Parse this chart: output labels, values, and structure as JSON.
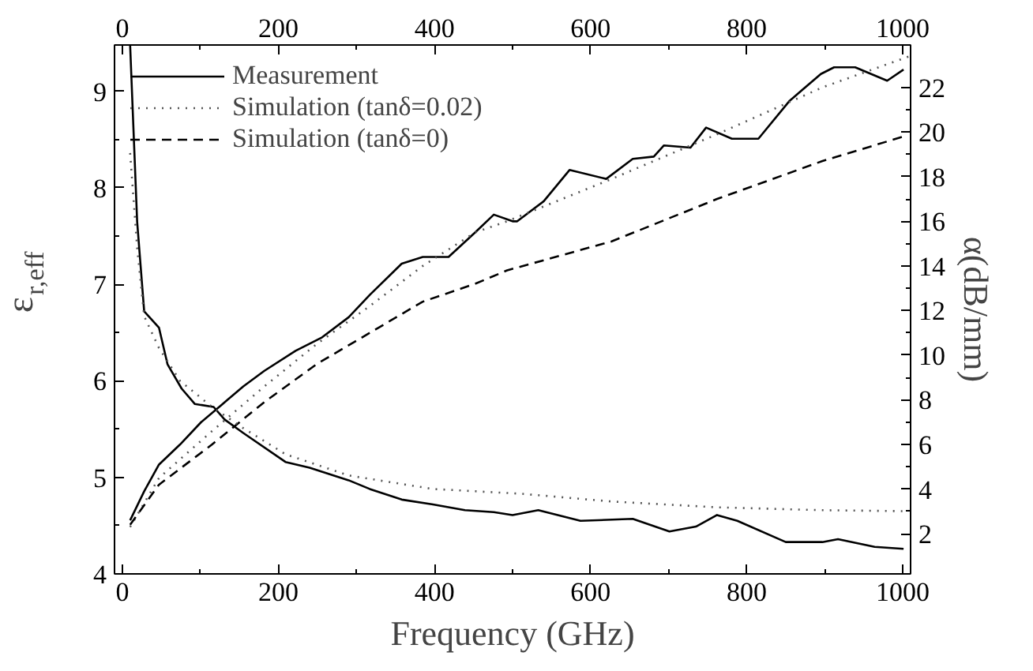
{
  "chart_data": {
    "type": "line",
    "xlabel": "Frequency (GHz)",
    "ylabel": "ε$_{r,eff}$",
    "y2label": "α(dB/mm)",
    "xlim": [
      -10,
      1010
    ],
    "xticks": [
      0,
      200,
      400,
      600,
      800,
      1000
    ],
    "x2lim": [
      -10,
      1010
    ],
    "x2ticks": [
      0,
      200,
      400,
      600,
      800,
      1000
    ],
    "ylim": [
      4,
      9.48
    ],
    "yticks": [
      4,
      5,
      6,
      7,
      8,
      9
    ],
    "y2lim": [
      0.2,
      23.9
    ],
    "y2ticks": [
      2,
      4,
      6,
      8,
      10,
      12,
      14,
      16,
      18,
      20,
      22
    ],
    "legend": "top left",
    "grid": false,
    "series": [
      {
        "name": "Measurement",
        "color": "#000000",
        "line_style": "solid",
        "axis": "y2",
        "x": [
          10,
          28,
          47,
          74,
          101,
          128,
          155,
          182,
          222,
          256,
          290,
          317,
          358,
          385,
          418,
          452,
          476,
          500,
          506,
          540,
          573,
          620,
          654,
          681,
          694,
          728,
          748,
          781,
          815,
          855,
          895,
          912,
          939,
          980,
          1001
        ],
        "values": [
          2.6,
          3.9,
          5.1,
          6.0,
          7.0,
          7.8,
          8.6,
          9.3,
          10.2,
          10.8,
          11.7,
          12.7,
          14.1,
          14.4,
          14.4,
          15.5,
          16.3,
          16.0,
          16.0,
          16.9,
          18.3,
          17.9,
          18.8,
          18.9,
          19.4,
          19.3,
          20.2,
          19.7,
          19.7,
          21.4,
          22.6,
          22.9,
          22.9,
          22.3,
          22.8
        ]
      },
      {
        "name": "Simulation (tanδ=0.02)",
        "color": "#555555",
        "line_style": "dotted",
        "axis": "y2",
        "x": [
          10,
          47,
          115,
          182,
          249,
          317,
          385,
          452,
          493,
          627,
          762,
          897,
          1009
        ],
        "values": [
          2.3,
          4.5,
          6.6,
          8.6,
          10.5,
          12.2,
          14.0,
          15.5,
          16.0,
          17.9,
          19.9,
          22.0,
          23.4
        ]
      },
      {
        "name": "Simulation (tanδ=0)",
        "color": "#000000",
        "line_style": "dashed",
        "axis": "y2",
        "x": [
          10,
          47,
          115,
          182,
          249,
          317,
          385,
          452,
          493,
          627,
          762,
          897,
          1001
        ],
        "values": [
          2.4,
          4.2,
          6.0,
          7.9,
          9.6,
          11.0,
          12.4,
          13.2,
          13.8,
          15.1,
          17.0,
          18.7,
          19.8
        ]
      },
      {
        "color": "#000000",
        "line_style": "solid",
        "axis": "y",
        "x": [
          10,
          19,
          28,
          47,
          58,
          76,
          93,
          117,
          131,
          155,
          209,
          240,
          290,
          317,
          358,
          398,
          439,
          476,
          500,
          533,
          587,
          654,
          701,
          735,
          762,
          788,
          850,
          897,
          917,
          964,
          1001
        ],
        "values": [
          9.48,
          7.65,
          6.72,
          6.55,
          6.17,
          5.92,
          5.76,
          5.73,
          5.6,
          5.46,
          5.16,
          5.1,
          4.97,
          4.88,
          4.77,
          4.72,
          4.66,
          4.64,
          4.61,
          4.66,
          4.55,
          4.57,
          4.44,
          4.49,
          4.61,
          4.55,
          4.33,
          4.33,
          4.36,
          4.28,
          4.26
        ]
      },
      {
        "color": "#555555",
        "line_style": "dotted",
        "axis": "y",
        "x": [
          10,
          19,
          28,
          47,
          74,
          115,
          155,
          209,
          290,
          398,
          512,
          627,
          762,
          897,
          1001
        ],
        "values": [
          8.36,
          7.38,
          6.67,
          6.34,
          6.0,
          5.73,
          5.51,
          5.24,
          5.02,
          4.88,
          4.83,
          4.75,
          4.69,
          4.66,
          4.65
        ]
      }
    ]
  }
}
